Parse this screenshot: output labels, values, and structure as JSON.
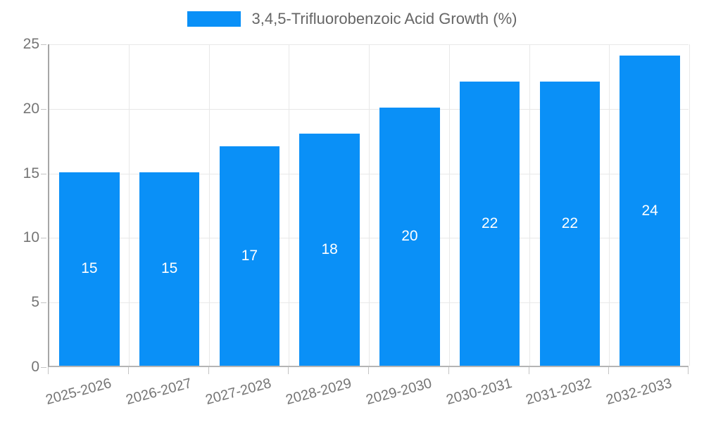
{
  "chart_data": {
    "type": "bar",
    "title": "3,4,5-Trifluorobenzoic Acid Growth (%)",
    "categories": [
      "2025-2026",
      "2026-2027",
      "2027-2028",
      "2028-2029",
      "2029-2030",
      "2030-2031",
      "2031-2032",
      "2032-2033"
    ],
    "values": [
      15,
      15,
      17,
      18,
      20,
      22,
      22,
      24
    ],
    "xlabel": "",
    "ylabel": "",
    "ylim": [
      0,
      25
    ],
    "yticks": [
      0,
      5,
      10,
      15,
      20,
      25
    ],
    "grid": true,
    "legend_position": "top",
    "bar_color": "#0a90f7",
    "value_label_color": "#ffffff",
    "tick_label_color": "#757575",
    "legend_label_color": "#666666"
  }
}
